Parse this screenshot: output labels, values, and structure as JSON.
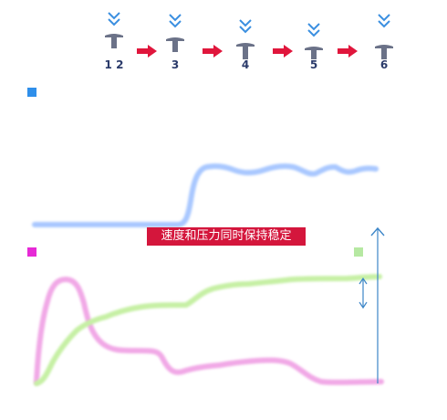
{
  "stages": [
    {
      "label": "1 2"
    },
    {
      "label": "3"
    },
    {
      "label": "4"
    },
    {
      "label": "5"
    },
    {
      "label": "6"
    }
  ],
  "banner": {
    "text": "速度和压力同时保持稳定"
  },
  "colors": {
    "tool": "#6b7288",
    "chevron": "#3b8fe0",
    "arrow": "#e0163c",
    "speed": "#a9c8ff",
    "pressure": "#f1a8e6",
    "green": "#c6f0a4",
    "marker": "#3d86c8"
  },
  "legend": [
    {
      "name": "speed-legend",
      "color": "#2f8fea"
    },
    {
      "name": "pressure-legend",
      "color": "#e62ad6"
    },
    {
      "name": "green-legend",
      "color": "#b6e8a2"
    }
  ],
  "icons": {
    "stage": "press-tool-icon",
    "arrow": "right-arrow-icon",
    "chevron": "double-chevron-down-icon"
  }
}
